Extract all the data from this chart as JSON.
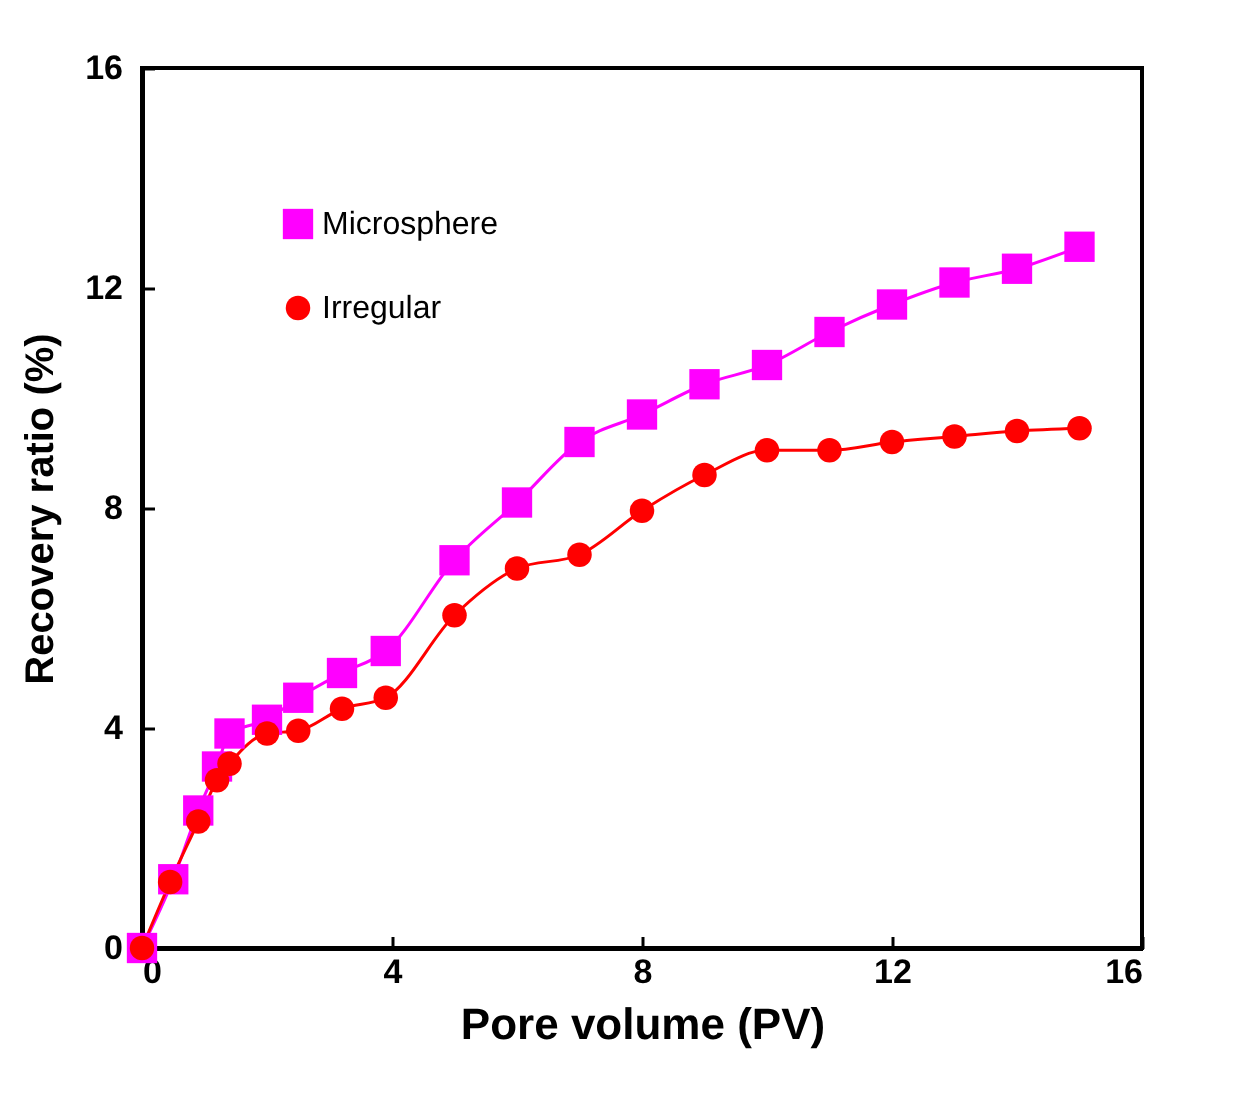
{
  "chart_data": {
    "type": "line",
    "xlabel": "Pore volume (PV)",
    "ylabel": "Recovery ratio (%)",
    "xlim": [
      0,
      16
    ],
    "xticks": [
      0,
      4,
      8,
      12,
      16
    ],
    "ylim": [
      0,
      16
    ],
    "yticks": [
      0,
      4,
      8,
      12,
      16
    ],
    "grid": false,
    "legend": "top left",
    "series": [
      {
        "name": "Microsphere",
        "color": "#ff00ff",
        "marker": "square",
        "x": [
          0,
          0.5,
          0.9,
          1.2,
          1.4,
          2,
          2.5,
          3.2,
          3.9,
          5,
          6,
          7,
          8,
          9,
          10,
          11,
          12,
          13,
          14,
          15
        ],
        "values": [
          0,
          1.25,
          2.5,
          3.3,
          3.9,
          4.15,
          4.55,
          5.0,
          5.4,
          7.05,
          8.1,
          9.2,
          9.7,
          10.25,
          10.6,
          11.2,
          11.7,
          12.1,
          12.35,
          12.75
        ]
      },
      {
        "name": "Irregular",
        "color": "#ff0000",
        "marker": "circle",
        "x": [
          0,
          0.45,
          0.9,
          1.2,
          1.4,
          2,
          2.5,
          3.2,
          3.9,
          5,
          6,
          7,
          8,
          9,
          10,
          11,
          12,
          13,
          14,
          15
        ],
        "values": [
          0,
          1.2,
          2.3,
          3.05,
          3.35,
          3.9,
          3.95,
          4.35,
          4.55,
          6.05,
          6.9,
          7.15,
          7.95,
          8.6,
          9.05,
          9.05,
          9.2,
          9.3,
          9.4,
          9.45
        ]
      }
    ]
  }
}
